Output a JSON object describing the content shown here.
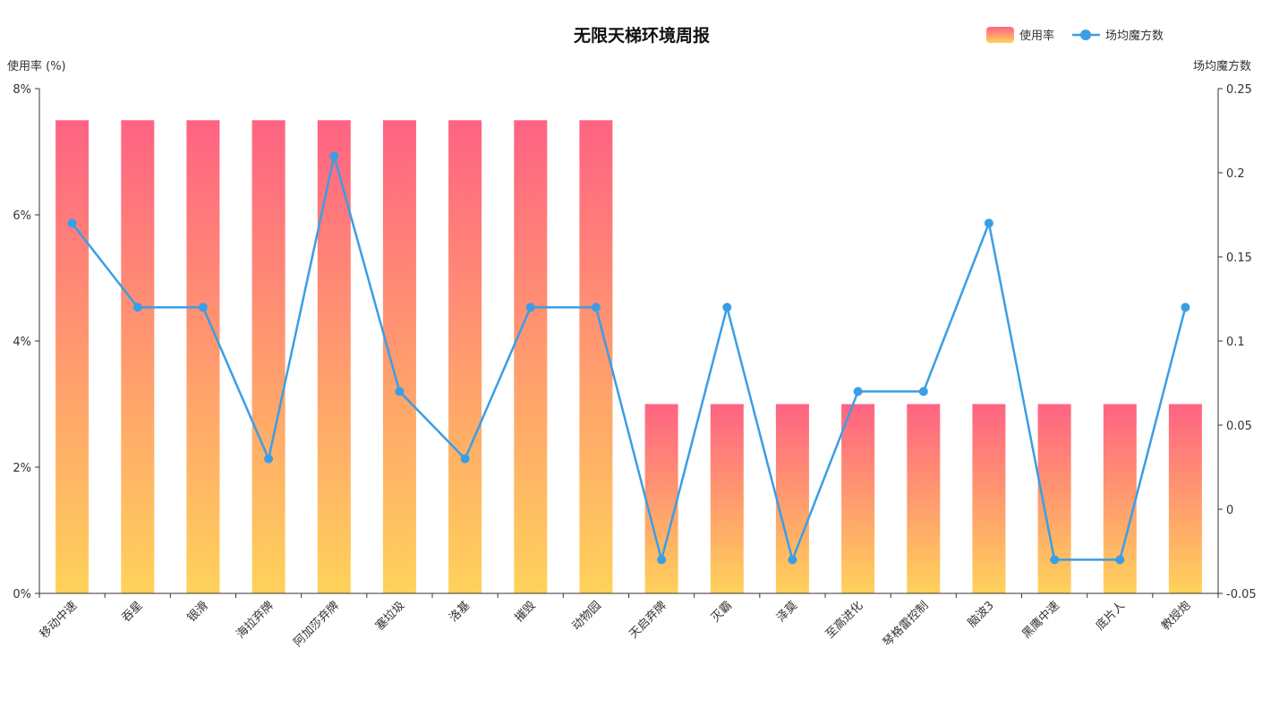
{
  "chart_data": {
    "type": "bar",
    "title": "无限天梯环境周报",
    "categories": [
      "移动中速",
      "吞星",
      "银滑",
      "海拉弃牌",
      "阿加莎弃牌",
      "塞垃圾",
      "洛基",
      "摧毁",
      "动物园",
      "天启弃牌",
      "灭霸",
      "泽莫",
      "至高进化",
      "琴格雷控制",
      "脑波3",
      "黑鹰中速",
      "底片人",
      "教授炮"
    ],
    "series": [
      {
        "name": "使用率",
        "type": "bar",
        "axis": "left",
        "values": [
          7.5,
          7.5,
          7.5,
          7.5,
          7.5,
          7.5,
          7.5,
          7.5,
          7.5,
          3,
          3,
          3,
          3,
          3,
          3,
          3,
          3,
          3
        ]
      },
      {
        "name": "场均魔方数",
        "type": "line",
        "axis": "right",
        "values": [
          0.17,
          0.12,
          0.12,
          0.03,
          0.21,
          0.07,
          0.03,
          0.12,
          0.12,
          -0.03,
          0.12,
          -0.03,
          0.07,
          0.07,
          0.17,
          -0.03,
          -0.03,
          0.12
        ]
      }
    ],
    "y_left": {
      "label": "使用率 (%)",
      "range": [
        0,
        8
      ],
      "ticks": [
        0,
        2,
        4,
        6,
        8
      ],
      "tick_labels": [
        "0%",
        "2%",
        "4%",
        "6%",
        "8%"
      ]
    },
    "y_right": {
      "label": "场均魔方数",
      "range": [
        -0.05,
        0.25
      ],
      "ticks": [
        -0.05,
        0,
        0.05,
        0.1,
        0.15,
        0.2,
        0.25
      ],
      "tick_labels": [
        "-0.05",
        "0",
        "0.05",
        "0.1",
        "0.15",
        "0.2",
        "0.25"
      ]
    },
    "legend_position": "top-right",
    "grid": false,
    "colors": {
      "bar_top": "#ff6383",
      "bar_bottom": "#ffd25a",
      "line": "#3a9ee6",
      "axis": "#333333"
    }
  }
}
